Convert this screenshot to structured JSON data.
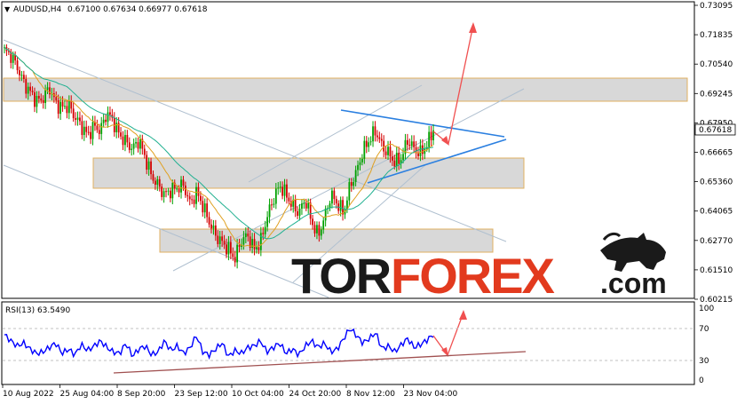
{
  "header": {
    "symbol_timeframe": "AUDUSD,H4",
    "ohlc": "0.67100 0.67634 0.66977 0.67618",
    "rsi_label": "RSI(13) 63.5490"
  },
  "watermark": {
    "part1": "TOR",
    "part2": "FOREX",
    "part3": ".com",
    "color1": "#1a1a1a",
    "color2": "#e23a1e"
  },
  "price_axis": {
    "ticks": [
      "0.73095",
      "0.71835",
      "0.70540",
      "0.69245",
      "0.67950",
      "0.66665",
      "0.65360",
      "0.64065",
      "0.62770",
      "0.61510",
      "0.60215"
    ],
    "current_price": "0.67618"
  },
  "rsi_axis": {
    "ticks": [
      "100",
      "70",
      "30",
      "0"
    ]
  },
  "time_axis": {
    "ticks": [
      "10 Aug 2022",
      "25 Aug 04:00",
      "8 Sep 20:00",
      "23 Sep 12:00",
      "10 Oct 04:00",
      "24 Oct 20:00",
      "8 Nov 12:00",
      "23 Nov 04:00"
    ]
  },
  "colors": {
    "candle_up": "#00a000",
    "candle_down": "#d40000",
    "ma_fast": "#e0a020",
    "ma_slow": "#20b090",
    "channel": "#b0c0d0",
    "zone_fill": "#d8d8d8",
    "zone_border": "#e0b060",
    "triangle": "#2a7fe0",
    "arrow": "#f05050",
    "rsi_line": "#0000ff",
    "rsi_trend": "#a05050"
  },
  "chart_data": [
    {
      "type": "candlestick",
      "title": "AUDUSD,H4",
      "ylim": [
        0.602,
        0.731
      ],
      "x_ticks": [
        "10 Aug 2022",
        "25 Aug 04:00",
        "8 Sep 20:00",
        "23 Sep 12:00",
        "10 Oct 04:00",
        "24 Oct 20:00",
        "8 Nov 12:00",
        "23 Nov 04:00"
      ],
      "close_path": [
        0.711,
        0.709,
        0.704,
        0.697,
        0.693,
        0.689,
        0.69,
        0.695,
        0.688,
        0.686,
        0.687,
        0.682,
        0.678,
        0.674,
        0.678,
        0.676,
        0.684,
        0.68,
        0.674,
        0.671,
        0.668,
        0.672,
        0.664,
        0.656,
        0.652,
        0.648,
        0.65,
        0.651,
        0.652,
        0.644,
        0.649,
        0.643,
        0.636,
        0.63,
        0.627,
        0.624,
        0.62,
        0.628,
        0.63,
        0.624,
        0.627,
        0.638,
        0.646,
        0.652,
        0.648,
        0.643,
        0.64,
        0.646,
        0.636,
        0.63,
        0.638,
        0.648,
        0.644,
        0.64,
        0.652,
        0.658,
        0.667,
        0.672,
        0.676,
        0.669,
        0.666,
        0.662,
        0.664,
        0.672,
        0.668,
        0.666,
        0.67,
        0.676
      ],
      "last_price": 0.67618
    },
    {
      "type": "line",
      "title": "RSI(13) 63.5490",
      "ylim": [
        0,
        100
      ],
      "levels": [
        70,
        30
      ],
      "values": [
        63,
        55,
        48,
        52,
        44,
        38,
        40,
        46,
        52,
        38,
        44,
        36,
        50,
        42,
        48,
        55,
        46,
        40,
        38,
        52,
        34,
        44,
        48,
        36,
        40,
        55,
        42,
        48,
        38,
        46,
        62,
        40,
        36,
        44,
        52,
        34,
        42,
        38,
        46,
        48,
        55,
        40,
        46,
        52,
        38,
        44,
        36,
        48,
        55,
        46,
        52,
        40,
        44,
        58,
        72,
        62,
        52,
        58,
        66,
        44,
        48,
        40,
        50,
        58,
        46,
        50,
        56,
        63
      ]
    }
  ]
}
